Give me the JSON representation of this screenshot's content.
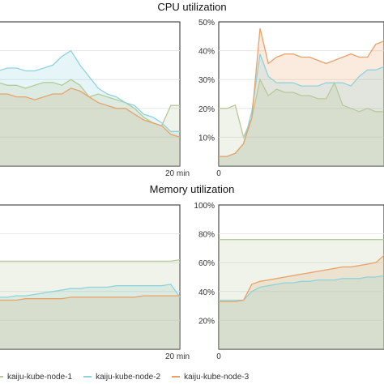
{
  "sections": [
    {
      "title": "CPU utilization"
    },
    {
      "title": "Memory utilization"
    }
  ],
  "legend": [
    {
      "name": "kaiju-kube-node-1",
      "color": "#b8c99a"
    },
    {
      "name": "kaiju-kube-node-2",
      "color": "#8fd3dc"
    },
    {
      "name": "kaiju-kube-node-3",
      "color": "#e8a269"
    }
  ],
  "chart_data": [
    {
      "type": "area",
      "title": "CPU utilization",
      "panel": "left",
      "x_tick_label": "20 min",
      "xlim": [
        0,
        20
      ],
      "ylim": [
        0,
        50
      ],
      "grid": true,
      "x": [
        0,
        1,
        2,
        3,
        4,
        5,
        6,
        7,
        8,
        9,
        10,
        11,
        12,
        13,
        14,
        15,
        16,
        17,
        18,
        19,
        20
      ],
      "series": [
        {
          "name": "kaiju-kube-node-1",
          "values": [
            29,
            28,
            28,
            27,
            28,
            29,
            29,
            28,
            30,
            28,
            24,
            25,
            24,
            23,
            22,
            20,
            17,
            15,
            14,
            21,
            21
          ]
        },
        {
          "name": "kaiju-kube-node-2",
          "values": [
            33,
            34,
            34,
            33,
            33,
            34,
            35,
            38,
            40,
            35,
            31,
            27,
            25,
            24,
            22,
            21,
            18,
            17,
            15,
            12,
            12
          ]
        },
        {
          "name": "kaiju-kube-node-3",
          "values": [
            25,
            25,
            24,
            24,
            23,
            24,
            25,
            25,
            27,
            26,
            24,
            22,
            21,
            20,
            20,
            18,
            16,
            15,
            14,
            11,
            10
          ]
        }
      ]
    },
    {
      "type": "area",
      "title": "CPU utilization",
      "panel": "right",
      "x_tick_label": "0",
      "xlim": [
        0,
        20
      ],
      "ylim": [
        5,
        50
      ],
      "y_tick_labels": [
        "10%",
        "20%",
        "30%",
        "40%",
        "50%"
      ],
      "grid": true,
      "x": [
        0,
        1,
        2,
        3,
        4,
        5,
        6,
        7,
        8,
        9,
        10,
        11,
        12,
        13,
        14,
        15,
        16,
        17,
        18,
        19,
        20
      ],
      "series": [
        {
          "name": "kaiju-kube-node-1",
          "values": [
            23,
            23,
            24,
            14,
            20,
            32,
            27,
            29,
            28,
            28,
            27,
            27,
            26,
            26,
            31,
            24,
            23,
            22,
            23,
            22,
            22
          ]
        },
        {
          "name": "kaiju-kube-node-2",
          "values": [
            8,
            8,
            9,
            12,
            22,
            40,
            33,
            31,
            31,
            31,
            30,
            30,
            30,
            31,
            31,
            31,
            30,
            33,
            35,
            35,
            36
          ]
        },
        {
          "name": "kaiju-kube-node-3",
          "values": [
            8,
            8,
            9,
            12,
            20,
            48,
            37,
            39,
            40,
            40,
            39,
            39,
            38,
            37,
            38,
            39,
            40,
            39,
            39,
            43,
            44
          ]
        }
      ]
    },
    {
      "type": "area",
      "title": "Memory utilization",
      "panel": "left",
      "x_tick_label": "20 min",
      "xlim": [
        0,
        20
      ],
      "ylim": [
        0,
        100
      ],
      "grid": true,
      "x": [
        0,
        1,
        2,
        3,
        4,
        5,
        6,
        7,
        8,
        9,
        10,
        11,
        12,
        13,
        14,
        15,
        16,
        17,
        18,
        19,
        20
      ],
      "series": [
        {
          "name": "kaiju-kube-node-1",
          "values": [
            61,
            61,
            61,
            61,
            61,
            61,
            61,
            61,
            61,
            61,
            61,
            61,
            61,
            61,
            61,
            61,
            61,
            61,
            61,
            61,
            62
          ]
        },
        {
          "name": "kaiju-kube-node-2",
          "values": [
            36,
            36,
            37,
            37,
            38,
            39,
            40,
            41,
            42,
            42,
            43,
            43,
            43,
            44,
            44,
            44,
            44,
            44,
            44,
            45,
            36
          ]
        },
        {
          "name": "kaiju-kube-node-3",
          "values": [
            34,
            34,
            34,
            35,
            35,
            35,
            35,
            35,
            36,
            36,
            36,
            36,
            36,
            36,
            36,
            36,
            37,
            37,
            37,
            37,
            37
          ]
        }
      ]
    },
    {
      "type": "area",
      "title": "Memory utilization",
      "panel": "right",
      "x_tick_label": "0",
      "xlim": [
        0,
        20
      ],
      "ylim": [
        0,
        100
      ],
      "y_tick_labels": [
        "20%",
        "40%",
        "60%",
        "80%",
        "100%"
      ],
      "grid": true,
      "x": [
        0,
        1,
        2,
        3,
        4,
        5,
        6,
        7,
        8,
        9,
        10,
        11,
        12,
        13,
        14,
        15,
        16,
        17,
        18,
        19,
        20
      ],
      "series": [
        {
          "name": "kaiju-kube-node-1",
          "values": [
            76,
            76,
            76,
            76,
            76,
            76,
            76,
            76,
            76,
            76,
            76,
            76,
            76,
            76,
            76,
            76,
            76,
            76,
            76,
            76,
            76
          ]
        },
        {
          "name": "kaiju-kube-node-2",
          "values": [
            34,
            34,
            34,
            34,
            40,
            43,
            44,
            45,
            46,
            46,
            47,
            47,
            48,
            48,
            48,
            49,
            49,
            49,
            50,
            50,
            51
          ]
        },
        {
          "name": "kaiju-kube-node-3",
          "values": [
            33,
            33,
            33,
            34,
            45,
            47,
            48,
            49,
            50,
            51,
            52,
            53,
            54,
            55,
            56,
            57,
            57,
            58,
            59,
            60,
            65
          ]
        }
      ]
    }
  ]
}
